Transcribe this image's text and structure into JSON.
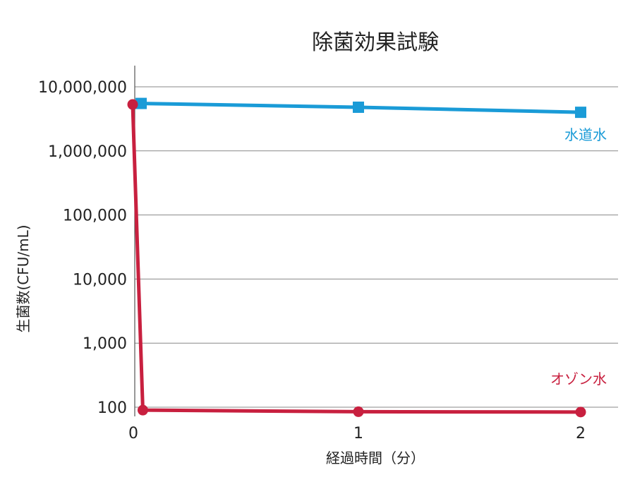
{
  "chart_data": {
    "type": "line",
    "title": "除菌効果試験",
    "xlabel": "経過時間（分）",
    "ylabel": "生菌数(CFU/mL)",
    "yscale": "log",
    "ylim": [
      100,
      10000000
    ],
    "xlim": [
      0,
      2
    ],
    "x_ticks": [
      {
        "value": 0,
        "label": "0"
      },
      {
        "value": 1,
        "label": "1"
      },
      {
        "value": 2,
        "label": "2"
      }
    ],
    "y_ticks": [
      {
        "value": 10000000,
        "label": "10,000,000"
      },
      {
        "value": 1000000,
        "label": "1,000,000"
      },
      {
        "value": 100000,
        "label": "100,000"
      },
      {
        "value": 10000,
        "label": "10,000"
      },
      {
        "value": 1000,
        "label": "1,000"
      },
      {
        "value": 100,
        "label": "100"
      }
    ],
    "grid": true,
    "series": [
      {
        "name": "水道水",
        "color": "#1a9bd7",
        "marker": "square",
        "points": [
          {
            "x": 0,
            "y": 5500000
          },
          {
            "x": 1,
            "y": 4800000
          },
          {
            "x": 2,
            "y": 4000000
          }
        ]
      },
      {
        "name": "オゾン水",
        "color": "#c8203f",
        "marker": "circle",
        "points": [
          {
            "x": 0,
            "y": 5300000
          },
          {
            "x": 0.03,
            "y": 90
          },
          {
            "x": 1,
            "y": 85
          },
          {
            "x": 2,
            "y": 84
          }
        ]
      }
    ]
  }
}
